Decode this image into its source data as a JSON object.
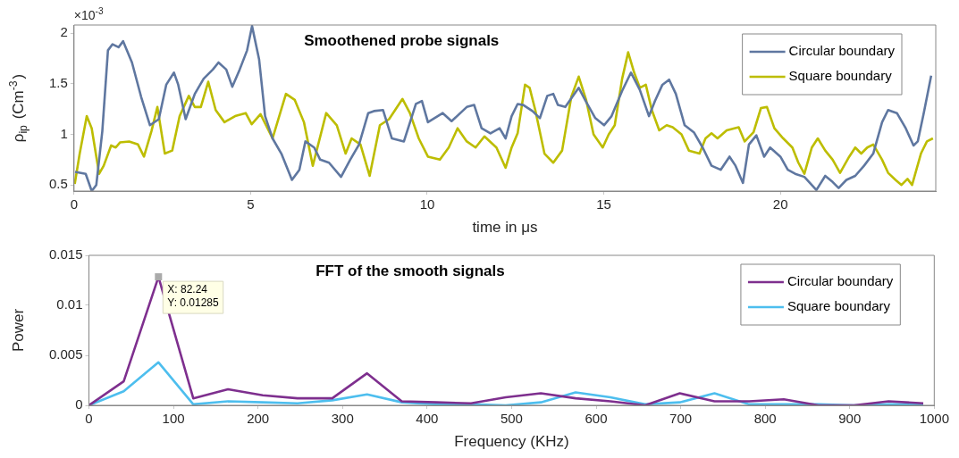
{
  "chart_data": [
    {
      "type": "line",
      "title": "Smoothened probe signals",
      "xlabel": "time in μs",
      "ylabel": "ρ$_{ip}$ (Cm$^{-3}$)",
      "annotations": [
        "×10$^{-3}$"
      ],
      "xlim": [
        0,
        24.4
      ],
      "xticks": [
        0,
        5,
        10,
        15,
        20
      ],
      "ylim": [
        0.44,
        2.08
      ],
      "yticks": [
        0.5,
        1,
        1.5,
        2
      ],
      "legend": "top right",
      "grid": false,
      "marker": "none",
      "series": [
        {
          "name": "Circular boundary",
          "color": "#5f77a0",
          "x": [
            0.03,
            0.33,
            0.5,
            0.63,
            0.8,
            0.96,
            1.09,
            1.26,
            1.39,
            1.64,
            1.9,
            2.15,
            2.4,
            2.61,
            2.83,
            2.95,
            3.16,
            3.42,
            3.67,
            3.93,
            4.09,
            4.31,
            4.48,
            4.69,
            4.9,
            5.04,
            5.24,
            5.41,
            5.62,
            5.87,
            6.17,
            6.38,
            6.55,
            6.8,
            6.97,
            7.22,
            7.56,
            7.82,
            8.07,
            8.33,
            8.49,
            8.75,
            9.0,
            9.34,
            9.68,
            9.85,
            10.02,
            10.44,
            10.69,
            11.12,
            11.33,
            11.54,
            11.79,
            12.05,
            12.22,
            12.39,
            12.56,
            12.72,
            12.98,
            13.19,
            13.4,
            13.57,
            13.7,
            13.91,
            14.29,
            14.5,
            14.76,
            15.01,
            15.22,
            15.52,
            15.77,
            16.02,
            16.28,
            16.45,
            16.66,
            16.85,
            17.04,
            17.29,
            17.55,
            17.8,
            18.05,
            18.31,
            18.56,
            18.73,
            18.94,
            19.11,
            19.32,
            19.54,
            19.71,
            20.0,
            20.21,
            20.42,
            20.68,
            21.02,
            21.27,
            21.48,
            21.65,
            21.87,
            22.12,
            22.37,
            22.63,
            22.88,
            23.05,
            23.3,
            23.55,
            23.77,
            23.89,
            24.06,
            24.27
          ],
          "values": [
            0.63,
            0.61,
            0.44,
            0.5,
            1.03,
            1.83,
            1.89,
            1.86,
            1.92,
            1.71,
            1.37,
            1.09,
            1.15,
            1.49,
            1.61,
            1.49,
            1.15,
            1.4,
            1.55,
            1.64,
            1.71,
            1.64,
            1.47,
            1.64,
            1.83,
            2.07,
            1.74,
            1.18,
            0.96,
            0.81,
            0.55,
            0.65,
            0.93,
            0.87,
            0.75,
            0.72,
            0.58,
            0.75,
            0.9,
            1.21,
            1.23,
            1.24,
            0.96,
            0.93,
            1.3,
            1.33,
            1.12,
            1.21,
            1.13,
            1.27,
            1.29,
            1.06,
            1.01,
            1.06,
            0.96,
            1.18,
            1.3,
            1.29,
            1.23,
            1.16,
            1.38,
            1.4,
            1.29,
            1.27,
            1.46,
            1.32,
            1.16,
            1.09,
            1.18,
            1.43,
            1.61,
            1.44,
            1.18,
            1.33,
            1.49,
            1.54,
            1.4,
            1.09,
            1.02,
            0.87,
            0.69,
            0.65,
            0.78,
            0.69,
            0.52,
            0.9,
            0.99,
            0.78,
            0.87,
            0.78,
            0.65,
            0.61,
            0.58,
            0.45,
            0.59,
            0.53,
            0.47,
            0.55,
            0.59,
            0.69,
            0.81,
            1.12,
            1.24,
            1.21,
            1.06,
            0.89,
            0.93,
            1.21,
            1.58
          ]
        },
        {
          "name": "Square boundary",
          "color": "#bdbd00",
          "x": [
            0.02,
            0.16,
            0.36,
            0.5,
            0.71,
            0.84,
            1.05,
            1.18,
            1.3,
            1.56,
            1.81,
            1.98,
            2.19,
            2.36,
            2.57,
            2.78,
            2.99,
            3.25,
            3.42,
            3.59,
            3.8,
            4.01,
            4.26,
            4.56,
            4.86,
            5.03,
            5.28,
            5.62,
            6.0,
            6.25,
            6.51,
            6.76,
            7.14,
            7.44,
            7.69,
            7.86,
            8.11,
            8.37,
            8.66,
            8.92,
            9.3,
            9.51,
            9.76,
            10.02,
            10.36,
            10.61,
            10.86,
            11.12,
            11.37,
            11.62,
            11.96,
            12.22,
            12.39,
            12.56,
            12.77,
            12.9,
            13.06,
            13.32,
            13.57,
            13.82,
            14.08,
            14.29,
            14.5,
            14.71,
            14.97,
            15.14,
            15.31,
            15.52,
            15.69,
            15.86,
            16.02,
            16.19,
            16.36,
            16.57,
            16.78,
            16.95,
            17.2,
            17.41,
            17.71,
            17.88,
            18.05,
            18.22,
            18.48,
            18.82,
            18.99,
            19.24,
            19.45,
            19.62,
            19.83,
            20.08,
            20.34,
            20.51,
            20.68,
            20.89,
            21.06,
            21.27,
            21.48,
            21.69,
            21.95,
            22.12,
            22.29,
            22.46,
            22.63,
            22.88,
            23.05,
            23.26,
            23.43,
            23.6,
            23.73,
            23.98,
            24.15,
            24.32
          ],
          "values": [
            0.51,
            0.81,
            1.18,
            1.06,
            0.61,
            0.69,
            0.89,
            0.87,
            0.92,
            0.93,
            0.9,
            0.78,
            1.03,
            1.27,
            0.81,
            0.84,
            1.18,
            1.38,
            1.27,
            1.27,
            1.52,
            1.24,
            1.12,
            1.18,
            1.21,
            1.1,
            1.2,
            0.96,
            1.4,
            1.34,
            1.12,
            0.69,
            1.21,
            1.09,
            0.81,
            0.96,
            0.9,
            0.59,
            1.09,
            1.15,
            1.35,
            1.21,
            0.96,
            0.78,
            0.75,
            0.87,
            1.06,
            0.93,
            0.87,
            0.98,
            0.87,
            0.67,
            0.87,
            1.01,
            1.49,
            1.46,
            1.24,
            0.81,
            0.72,
            0.84,
            1.37,
            1.57,
            1.34,
            1.0,
            0.87,
            1.0,
            1.09,
            1.55,
            1.81,
            1.61,
            1.46,
            1.49,
            1.24,
            1.04,
            1.09,
            1.07,
            1.0,
            0.84,
            0.81,
            0.96,
            1.01,
            0.96,
            1.04,
            1.07,
            0.93,
            1.02,
            1.26,
            1.27,
            1.06,
            0.96,
            0.87,
            0.72,
            0.61,
            0.87,
            0.96,
            0.84,
            0.75,
            0.62,
            0.78,
            0.87,
            0.81,
            0.87,
            0.9,
            0.75,
            0.62,
            0.55,
            0.5,
            0.56,
            0.5,
            0.81,
            0.93,
            0.96
          ]
        }
      ]
    },
    {
      "type": "line",
      "title": "FFT of the smooth signals",
      "xlabel": "Frequency (KHz)",
      "ylabel": "Power",
      "annotations": [
        {
          "text": "X: 82.24\nY: 0.01285",
          "x": 82.24,
          "y": 0.01285
        }
      ],
      "xlim": [
        0,
        1000
      ],
      "xticks": [
        0,
        100,
        200,
        300,
        400,
        500,
        600,
        700,
        800,
        900,
        1000
      ],
      "ylim": [
        0,
        0.015
      ],
      "yticks": [
        0,
        0.005,
        0.01,
        0.015
      ],
      "legend": "top right",
      "grid": false,
      "marker": "none",
      "x": [
        0,
        41.12,
        82.24,
        123.4,
        164.5,
        205.6,
        246.7,
        287.8,
        329,
        370,
        411,
        452,
        493,
        534.6,
        575.7,
        616.8,
        658,
        699,
        740,
        781,
        822,
        863,
        905,
        946,
        987
      ],
      "series": [
        {
          "name": "Circular boundary",
          "color": "#7e2f8e",
          "values": [
            0,
            0.0024,
            0.01285,
            0.0007,
            0.0016,
            0.001,
            0.0007,
            0.0007,
            0.0032,
            0.0004,
            0.0003,
            0.0002,
            0.0008,
            0.0012,
            0.0007,
            0.0004,
            0,
            0.0012,
            0.0004,
            0.0004,
            0.0006,
            0,
            0,
            0.0004,
            0.0002
          ]
        },
        {
          "name": "Square boundary",
          "color": "#4dbeee",
          "values": [
            0,
            0.0014,
            0.0043,
            0.0001,
            0.0004,
            0.0003,
            0.0002,
            0.0005,
            0.0011,
            0.0003,
            0.0001,
            0.0001,
            0,
            0.0003,
            0.0013,
            0.0008,
            0.0001,
            0.0003,
            0.0012,
            0.0001,
            0.0001,
            0.0001,
            0,
            0.0001,
            0.0001
          ]
        }
      ]
    }
  ]
}
